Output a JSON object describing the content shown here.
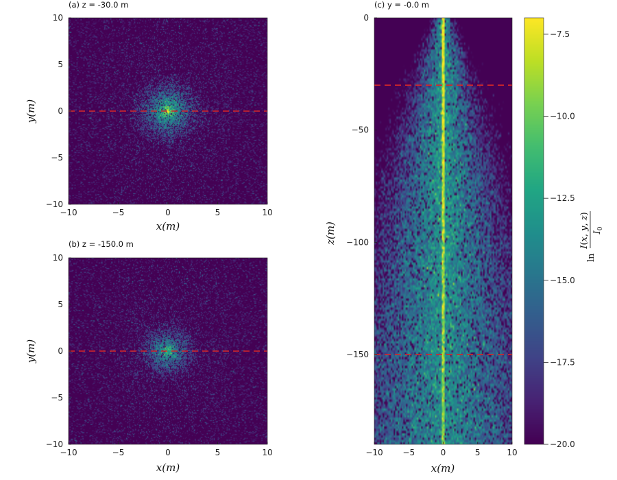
{
  "chart_data": [
    {
      "id": "a",
      "type": "heatmap",
      "title": "(a) z = -30.0 m",
      "xlabel": "x(m)",
      "ylabel": "y(m)",
      "xlim": [
        -10,
        10
      ],
      "ylim": [
        -10,
        10
      ],
      "xticks": [
        -10,
        -5,
        0,
        5,
        10
      ],
      "yticks": [
        -10,
        -5,
        0,
        5,
        10
      ],
      "xtick_labels": [
        "−10",
        "−5",
        "0",
        "5",
        "10"
      ],
      "ytick_labels": [
        "−10",
        "−5",
        "0",
        "5",
        "10"
      ],
      "cut_line": {
        "axis": "y",
        "value": 0,
        "color": "#d62728",
        "style": "dashed"
      },
      "peak_value": -7.0
    },
    {
      "id": "b",
      "type": "heatmap",
      "title": "(b) z = -150.0 m",
      "xlabel": "x(m)",
      "ylabel": "y(m)",
      "xlim": [
        -10,
        10
      ],
      "ylim": [
        -10,
        10
      ],
      "xticks": [
        -10,
        -5,
        0,
        5,
        10
      ],
      "yticks": [
        -10,
        -5,
        0,
        5,
        10
      ],
      "xtick_labels": [
        "−10",
        "−5",
        "0",
        "5",
        "10"
      ],
      "ytick_labels": [
        "−10",
        "−5",
        "0",
        "5",
        "10"
      ],
      "cut_line": {
        "axis": "y",
        "value": 0,
        "color": "#d62728",
        "style": "dashed"
      },
      "peak_value": -10.5
    },
    {
      "id": "c",
      "type": "heatmap",
      "title": "(c) y = -0.0 m",
      "xlabel": "x(m)",
      "ylabel": "z(m)",
      "xlim": [
        -10,
        10
      ],
      "ylim": [
        -190,
        0
      ],
      "xticks": [
        -10,
        -5,
        0,
        5,
        10
      ],
      "yticks": [
        0,
        -50,
        -100,
        -150
      ],
      "xtick_labels": [
        "−10",
        "−5",
        "0",
        "5",
        "10"
      ],
      "ytick_labels": [
        "0",
        "−50",
        "−100",
        "−150"
      ],
      "cut_lines": [
        {
          "axis": "z",
          "value": -30,
          "color": "#d62728",
          "style": "dashed"
        },
        {
          "axis": "z",
          "value": -150,
          "color": "#d62728",
          "style": "dashed"
        }
      ],
      "beam_center_x": 0
    }
  ],
  "colorbar": {
    "colormap": "viridis",
    "range": [
      -20.0,
      -7.0
    ],
    "ticks": [
      -7.5,
      -10.0,
      -12.5,
      -15.0,
      -17.5,
      -20.0
    ],
    "tick_labels": [
      "−7.5",
      "−10.0",
      "−12.5",
      "−15.0",
      "−17.5",
      "−20.0"
    ],
    "label": "ln I(x, y, z) / I0"
  }
}
